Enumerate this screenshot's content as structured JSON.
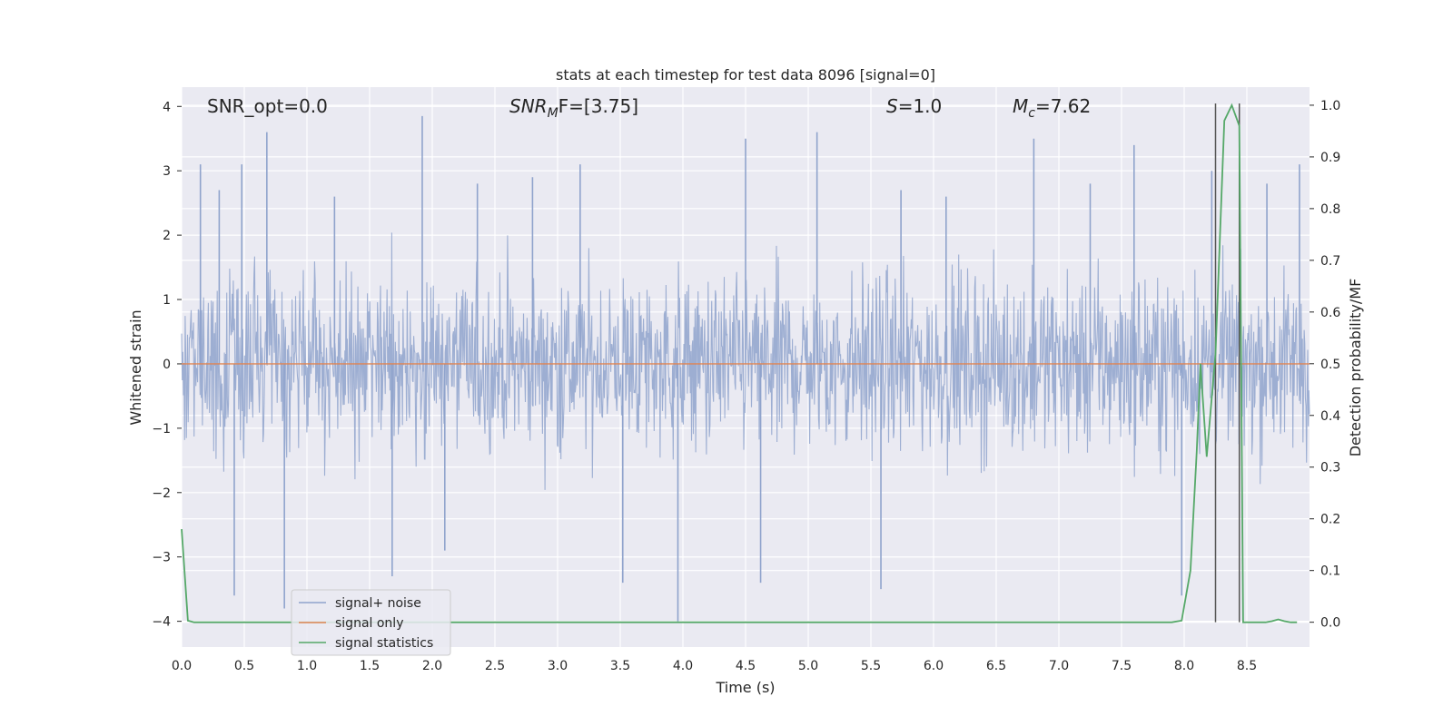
{
  "chart_data": {
    "type": "line",
    "title": "stats at each timestep for test data 8096 [signal=0]",
    "xlabel": "Time (s)",
    "ylabel_left": "Whitened strain",
    "ylabel_right": "Detection probability/MF",
    "xlim": [
      0.0,
      9.0
    ],
    "ylim_left": [
      -4.4,
      4.3
    ],
    "ylim_right": [
      -0.048,
      1.035
    ],
    "x_ticks": [
      "0.0",
      "0.5",
      "1.0",
      "1.5",
      "2.0",
      "2.5",
      "3.0",
      "3.5",
      "4.0",
      "4.5",
      "5.0",
      "5.5",
      "6.0",
      "6.5",
      "7.0",
      "7.5",
      "8.0",
      "8.5"
    ],
    "y_ticks_left": [
      "−4",
      "−3",
      "−2",
      "−1",
      "0",
      "1",
      "2",
      "3",
      "4"
    ],
    "y_ticks_right": [
      "0.0",
      "0.1",
      "0.2",
      "0.3",
      "0.4",
      "0.5",
      "0.6",
      "0.7",
      "0.8",
      "0.9",
      "1.0"
    ],
    "grid": true,
    "annotations": {
      "snr_opt": "SNR_opt=0.0",
      "snr_mf_base": "SNR",
      "snr_mf_sub": "M",
      "snr_mf_rest": "F=[3.75]",
      "s_label": "S",
      "s_rest": "=1.0",
      "mc_base": "M",
      "mc_sub": "c",
      "mc_rest": "=7.62"
    },
    "vlines_x": [
      8.25,
      8.44
    ],
    "legend": {
      "position": "lower-left",
      "entries": [
        "signal+ noise",
        "signal only",
        "signal statistics"
      ]
    },
    "series": [
      {
        "name": "signal+ noise",
        "kind": "noise",
        "color": "#8fa3cc",
        "duration": 9.0,
        "band": 1.6,
        "spikes": [
          [
            0.15,
            3.1
          ],
          [
            0.3,
            2.7
          ],
          [
            0.42,
            -3.6
          ],
          [
            0.48,
            3.1
          ],
          [
            0.68,
            3.6
          ],
          [
            0.82,
            -3.8
          ],
          [
            1.22,
            2.6
          ],
          [
            1.68,
            -3.3
          ],
          [
            1.92,
            3.85
          ],
          [
            2.1,
            -2.9
          ],
          [
            2.36,
            2.8
          ],
          [
            2.8,
            2.9
          ],
          [
            3.18,
            3.1
          ],
          [
            3.52,
            -3.4
          ],
          [
            3.96,
            -4.0
          ],
          [
            4.5,
            3.5
          ],
          [
            4.62,
            -3.4
          ],
          [
            5.07,
            3.6
          ],
          [
            5.58,
            -3.5
          ],
          [
            5.74,
            2.7
          ],
          [
            6.1,
            2.6
          ],
          [
            6.8,
            3.5
          ],
          [
            7.25,
            2.8
          ],
          [
            7.6,
            3.4
          ],
          [
            7.98,
            -3.6
          ],
          [
            8.22,
            3.0
          ],
          [
            8.66,
            2.8
          ],
          [
            8.92,
            3.1
          ]
        ]
      },
      {
        "name": "signal only",
        "kind": "flat",
        "color": "#dd8452",
        "value": 0.0
      },
      {
        "name": "signal statistics",
        "kind": "line",
        "color": "#55a868",
        "x": [
          0.0,
          0.05,
          0.1,
          0.15,
          0.2,
          0.3,
          0.5,
          1.0,
          2.0,
          3.0,
          4.0,
          5.0,
          6.0,
          7.0,
          7.5,
          7.9,
          7.98,
          8.05,
          8.1,
          8.13,
          8.18,
          8.25,
          8.32,
          8.38,
          8.44,
          8.47,
          8.5,
          8.55,
          8.6,
          8.65,
          8.7,
          8.75,
          8.8,
          8.85,
          8.9
        ],
        "y": [
          0.18,
          0.003,
          0.0,
          0.0,
          0.0,
          0.0,
          0.0,
          0.0,
          0.0,
          0.0,
          0.0,
          0.0,
          0.0,
          0.0,
          0.0,
          0.0,
          0.003,
          0.1,
          0.33,
          0.5,
          0.32,
          0.52,
          0.97,
          1.0,
          0.96,
          0.0,
          0.0,
          0.0,
          0.0,
          0.0,
          0.002,
          0.0055,
          0.002,
          0.0,
          0.0
        ]
      }
    ]
  }
}
